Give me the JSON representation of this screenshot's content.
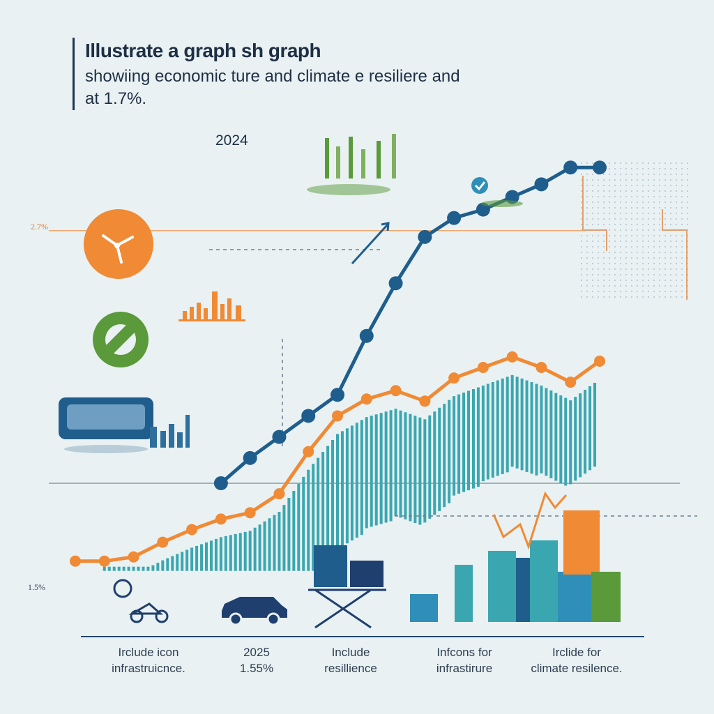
{
  "header": {
    "title_line1": "Illustrate a graph sh graph",
    "title_line2": "showiing economic ture and climate e resiliere and",
    "title_line3": "at 1.7%."
  },
  "year_label": "2024",
  "reference_labels": {
    "upper": "2.7%",
    "lower": "1.5%"
  },
  "captions": [
    {
      "line1": "Irclude icon",
      "line2": "infrastruicnce."
    },
    {
      "line1": "2025",
      "line2": "1.55%"
    },
    {
      "line1": "Include",
      "line2": "resillience"
    },
    {
      "line1": "Infcons for",
      "line2": "infrastirure"
    },
    {
      "line1": "Irclide for",
      "line2": "climate resilence."
    }
  ],
  "colors": {
    "blue_series": "#1f5e8c",
    "orange_series": "#f08a35",
    "teal_area": "#3aa7b0",
    "green_icon": "#5a9a3a",
    "navy_text": "#1e2f45"
  },
  "icons": [
    "wind-turbine-icon",
    "gear-icon",
    "truck-icon",
    "factory-icon",
    "car-icon",
    "table-icon",
    "city-skyline-icon",
    "bicycle-icon",
    "checkmark-icon"
  ],
  "chart_data": {
    "type": "line",
    "title": "",
    "xlabel": "",
    "ylabel": "",
    "x": [
      1,
      2,
      3,
      4,
      5,
      6,
      7,
      8,
      9,
      10,
      11,
      12,
      13,
      14,
      15,
      16,
      17,
      18,
      19
    ],
    "series": [
      {
        "name": "",
        "values": [
          null,
          null,
          null,
          null,
          null,
          1.5,
          1.62,
          1.72,
          1.82,
          1.92,
          2.2,
          2.45,
          2.67,
          2.76,
          2.8,
          2.86,
          2.92,
          3.0,
          3.0
        ]
      },
      {
        "name": "",
        "values": [
          1.13,
          1.13,
          1.15,
          1.22,
          1.28,
          1.33,
          1.36,
          1.45,
          1.65,
          1.82,
          1.9,
          1.94,
          1.89,
          2.0,
          2.05,
          2.1,
          2.05,
          1.98,
          2.08
        ]
      }
    ],
    "reference_lines": [
      2.7,
      1.5
    ],
    "ylim": [
      1.0,
      3.1
    ],
    "grid": false
  }
}
